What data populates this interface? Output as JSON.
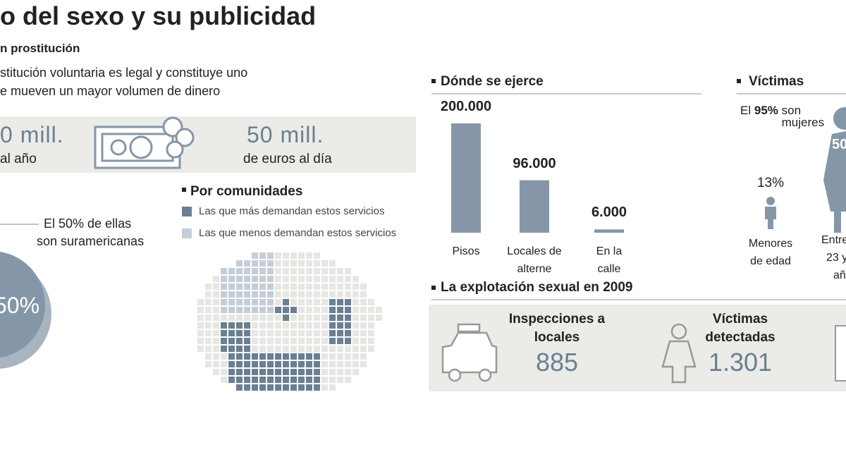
{
  "header": {
    "title": "o del sexo y su publicidad"
  },
  "prostitution": {
    "heading": "n prostitución",
    "text": [
      "stitución voluntaria es legal y constituye uno",
      "e mueven un mayor volumen de dinero"
    ],
    "annual": {
      "amount": "0 mill.",
      "unit": "al año"
    },
    "daily": {
      "amount": "50 mill.",
      "unit": "de euros al día"
    }
  },
  "origin": {
    "note": [
      "El 50% de ellas",
      "son suramericanas"
    ],
    "pie": {
      "value": 50,
      "label": "50%"
    }
  },
  "regions": {
    "heading": "Por comunidades",
    "legend": [
      {
        "label": "Las que más demandan estos servicios",
        "color": "#6b7f92"
      },
      {
        "label": "Las que menos demandan estos servicios",
        "color": "#c5ced7"
      }
    ]
  },
  "chart_data": {
    "type": "bar",
    "title": "Dónde se ejerce",
    "categories": [
      "Pisos",
      "Locales de alterne",
      "En la calle"
    ],
    "values": [
      200000,
      96000,
      6000
    ],
    "value_labels": [
      "200.000",
      "96.000",
      "6.000"
    ],
    "color": "#8596a8"
  },
  "victims": {
    "heading": "Víctimas",
    "share": {
      "pre": "El",
      "value": "95%",
      "post": "son mujeres"
    },
    "figure": "50",
    "minors": {
      "value": "13%",
      "label": "Menores de edad"
    },
    "adults": {
      "label": [
        "Entre",
        "23 y",
        "añ"
      ]
    }
  },
  "exploitation": {
    "heading": "La explotación sexual en 2009",
    "items": [
      {
        "label": "Inspecciones a locales",
        "value": "885"
      },
      {
        "label": "Víctimas detectadas",
        "value": "1.301"
      }
    ]
  }
}
